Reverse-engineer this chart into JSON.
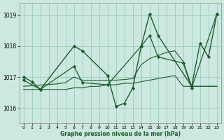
{
  "xlabel": "Graphe pression niveau de la mer (hPa)",
  "background_color": "#cce8e0",
  "grid_color": "#99ccbb",
  "line_color": "#1a5c2a",
  "marker_color": "#1a5c2a",
  "ylim": [
    1015.5,
    1019.4
  ],
  "xlim": [
    -0.5,
    23.5
  ],
  "yticks": [
    1016,
    1017,
    1018,
    1019
  ],
  "xticks": [
    0,
    1,
    2,
    3,
    4,
    5,
    6,
    7,
    8,
    9,
    10,
    11,
    12,
    13,
    14,
    15,
    16,
    17,
    18,
    19,
    20,
    21,
    22,
    23
  ],
  "series": [
    {
      "x": [
        0,
        1,
        2,
        6,
        7,
        10,
        11,
        12,
        13,
        14,
        15,
        16,
        20,
        21,
        22,
        23
      ],
      "y": [
        1017.0,
        1016.85,
        1016.6,
        1018.0,
        1017.85,
        1017.05,
        1016.05,
        1016.15,
        1016.65,
        1018.0,
        1019.05,
        1018.35,
        1016.7,
        1018.1,
        1017.65,
        1019.05
      ],
      "markers": true,
      "linewidth": 1.0
    },
    {
      "x": [
        0,
        1,
        2,
        3,
        4,
        5,
        6,
        7,
        8,
        9,
        10,
        11,
        12,
        13,
        14,
        15,
        16,
        17,
        18,
        19,
        20,
        21,
        22,
        23
      ],
      "y": [
        1016.6,
        1016.6,
        1016.6,
        1016.6,
        1016.6,
        1016.6,
        1016.65,
        1016.65,
        1016.7,
        1016.7,
        1016.75,
        1016.75,
        1016.8,
        1016.8,
        1016.85,
        1016.9,
        1016.95,
        1017.0,
        1017.05,
        1016.7,
        1016.7,
        1016.7,
        1016.7,
        1016.7
      ],
      "markers": false,
      "linewidth": 0.8
    },
    {
      "x": [
        0,
        1,
        2,
        3,
        4,
        5,
        6,
        7,
        8,
        9,
        10,
        11,
        12,
        13,
        14,
        15,
        16,
        17,
        18,
        19,
        20,
        21,
        22,
        23
      ],
      "y": [
        1016.7,
        1016.72,
        1016.74,
        1016.76,
        1016.78,
        1016.82,
        1017.0,
        1016.9,
        1016.88,
        1016.88,
        1016.9,
        1016.9,
        1016.92,
        1016.95,
        1017.4,
        1017.6,
        1017.7,
        1017.8,
        1017.85,
        1017.5,
        1016.7,
        1016.7,
        1016.7,
        1016.7
      ],
      "markers": false,
      "linewidth": 0.8
    },
    {
      "x": [
        0,
        2,
        6,
        7,
        10,
        14,
        15,
        16,
        19,
        20,
        23
      ],
      "y": [
        1016.9,
        1016.6,
        1017.35,
        1016.82,
        1016.75,
        1018.0,
        1018.35,
        1017.65,
        1017.45,
        1016.65,
        1019.05
      ],
      "markers": true,
      "linewidth": 0.9
    }
  ]
}
